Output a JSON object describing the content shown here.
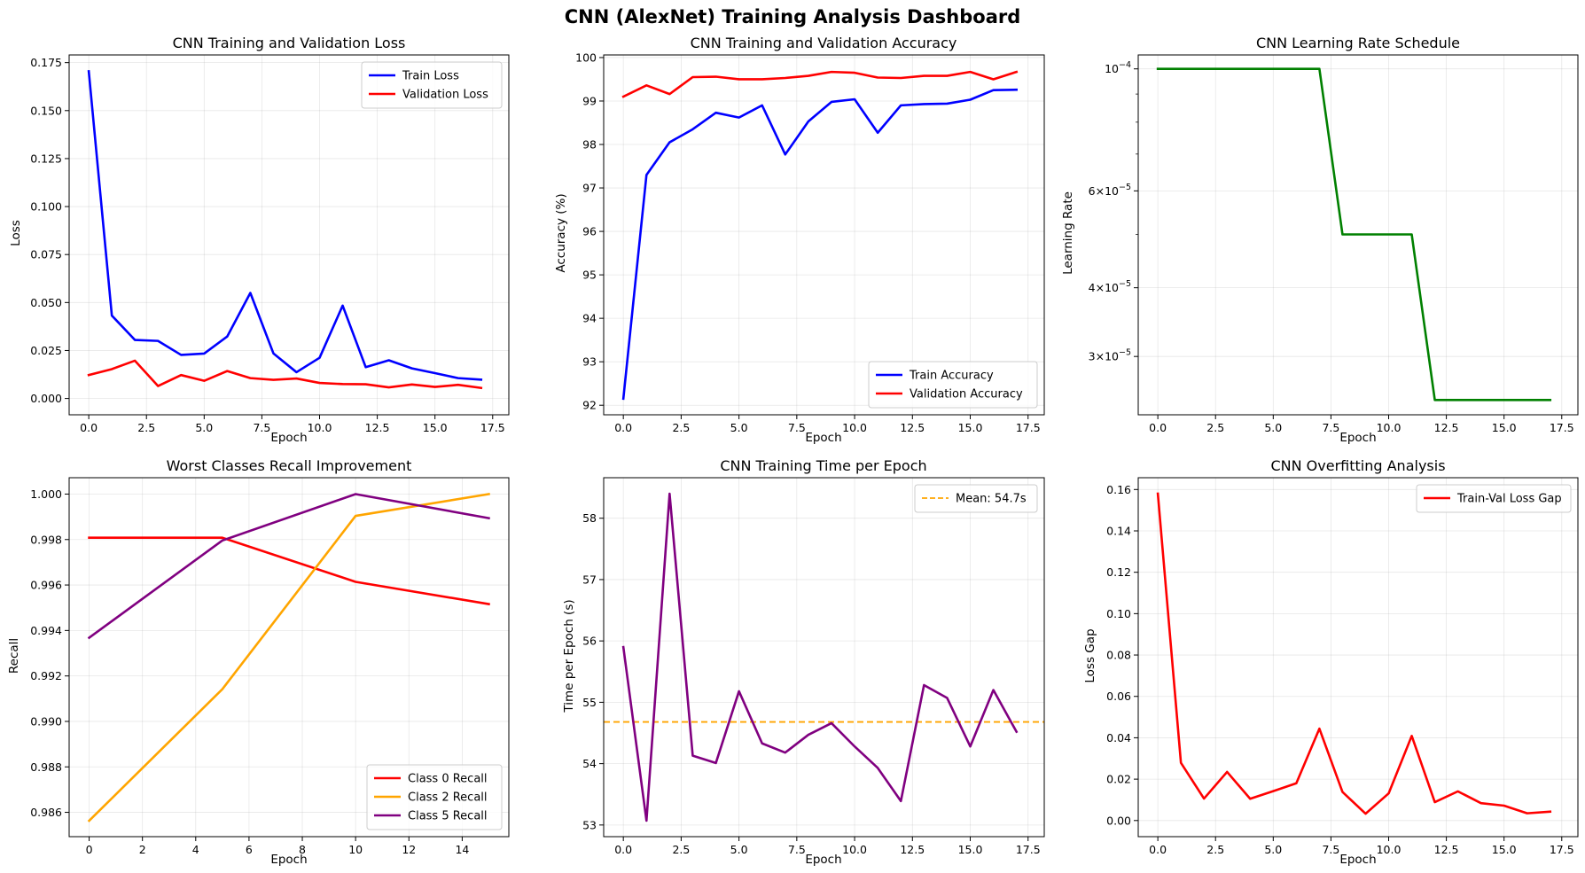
{
  "title": "CNN (AlexNet) Training Analysis Dashboard",
  "chart_data": [
    {
      "id": "loss",
      "type": "line",
      "title": "CNN Training and Validation Loss",
      "xlabel": "Epoch",
      "ylabel": "Loss",
      "xlim": [
        -0.85,
        18.2
      ],
      "ylim": [
        -0.0085,
        0.179
      ],
      "xticks": [
        0,
        2.5,
        5,
        7.5,
        10,
        12.5,
        15,
        17.5
      ],
      "xtick_labels": [
        "0.0",
        "2.5",
        "5.0",
        "7.5",
        "10.0",
        "12.5",
        "15.0",
        "17.5"
      ],
      "yticks": [
        0,
        0.025,
        0.05,
        0.075,
        0.1,
        0.125,
        0.15,
        0.175
      ],
      "ytick_labels": [
        "0.000",
        "0.025",
        "0.050",
        "0.075",
        "0.100",
        "0.125",
        "0.150",
        "0.175"
      ],
      "grid": true,
      "legend": "upper right",
      "x": [
        0,
        1,
        2,
        3,
        4,
        5,
        6,
        7,
        8,
        9,
        10,
        11,
        12,
        13,
        14,
        15,
        16,
        17
      ],
      "series": [
        {
          "name": "Train Loss",
          "color": "#0000ff",
          "values": [
            0.1705,
            0.0432,
            0.0305,
            0.03,
            0.0227,
            0.0234,
            0.0323,
            0.055,
            0.0235,
            0.0137,
            0.0212,
            0.0484,
            0.0163,
            0.0199,
            0.0157,
            0.0132,
            0.0106,
            0.0098
          ]
        },
        {
          "name": "Validation Loss",
          "color": "#ff0000",
          "values": [
            0.0122,
            0.0153,
            0.0197,
            0.0065,
            0.0122,
            0.0092,
            0.0143,
            0.0106,
            0.0097,
            0.0104,
            0.0081,
            0.0075,
            0.0074,
            0.0058,
            0.0073,
            0.006,
            0.0071,
            0.0055
          ]
        }
      ]
    },
    {
      "id": "acc",
      "type": "line",
      "title": "CNN Training and Validation Accuracy",
      "xlabel": "Epoch",
      "ylabel": "Accuracy (%)",
      "xlim": [
        -0.85,
        18.2
      ],
      "ylim": [
        91.78,
        100.06
      ],
      "xticks": [
        0,
        2.5,
        5,
        7.5,
        10,
        12.5,
        15,
        17.5
      ],
      "xtick_labels": [
        "0.0",
        "2.5",
        "5.0",
        "7.5",
        "10.0",
        "12.5",
        "15.0",
        "17.5"
      ],
      "yticks": [
        92,
        93,
        94,
        95,
        96,
        97,
        98,
        99,
        100
      ],
      "ytick_labels": [
        "92",
        "93",
        "94",
        "95",
        "96",
        "97",
        "98",
        "99",
        "100"
      ],
      "grid": true,
      "legend": "lower right",
      "x": [
        0,
        1,
        2,
        3,
        4,
        5,
        6,
        7,
        8,
        9,
        10,
        11,
        12,
        13,
        14,
        15,
        16,
        17
      ],
      "series": [
        {
          "name": "Train Accuracy",
          "color": "#0000ff",
          "values": [
            92.15,
            97.3,
            98.05,
            98.35,
            98.73,
            98.62,
            98.9,
            97.77,
            98.53,
            98.98,
            99.04,
            98.27,
            98.9,
            98.93,
            98.94,
            99.03,
            99.25,
            99.26
          ]
        },
        {
          "name": "Validation Accuracy",
          "color": "#ff0000",
          "values": [
            99.1,
            99.36,
            99.16,
            99.55,
            99.56,
            99.5,
            99.5,
            99.53,
            99.58,
            99.67,
            99.65,
            99.54,
            99.53,
            99.58,
            99.58,
            99.67,
            99.5,
            99.67
          ]
        }
      ]
    },
    {
      "id": "lr",
      "type": "line",
      "title": "CNN Learning Rate Schedule",
      "xlabel": "Epoch",
      "ylabel": "Learning Rate",
      "yscale": "log",
      "xlim": [
        -0.85,
        18.2
      ],
      "ylim": [
        2.35e-05,
        0.000106
      ],
      "xticks": [
        0,
        2.5,
        5,
        7.5,
        10,
        12.5,
        15,
        17.5
      ],
      "xtick_labels": [
        "0.0",
        "2.5",
        "5.0",
        "7.5",
        "10.0",
        "12.5",
        "15.0",
        "17.5"
      ],
      "yticks": [
        0.0001,
        6e-05,
        4e-05,
        3e-05
      ],
      "ytick_labels": [
        {
          "base": "10",
          "exp": "−4"
        },
        {
          "base": "6×10",
          "exp": "−5"
        },
        {
          "base": "4×10",
          "exp": "−5"
        },
        {
          "base": "3×10",
          "exp": "−5"
        }
      ],
      "minor_yticks": [
        9e-05,
        8e-05,
        7e-05,
        5e-05
      ],
      "grid": true,
      "legend": "none",
      "x": [
        0,
        1,
        2,
        3,
        4,
        5,
        6,
        7,
        8,
        9,
        10,
        11,
        12,
        13,
        14,
        15,
        16,
        17
      ],
      "series": [
        {
          "name": "",
          "color": "#008000",
          "values": [
            0.0001,
            0.0001,
            0.0001,
            0.0001,
            0.0001,
            0.0001,
            0.0001,
            0.0001,
            5e-05,
            5e-05,
            5e-05,
            5e-05,
            2.5e-05,
            2.5e-05,
            2.5e-05,
            2.5e-05,
            2.5e-05,
            2.5e-05
          ]
        }
      ]
    },
    {
      "id": "recall",
      "type": "line",
      "title": "Worst Classes Recall Improvement",
      "xlabel": "Epoch",
      "ylabel": "Recall",
      "xlim": [
        -0.75,
        15.75
      ],
      "ylim": [
        0.98493,
        1.00072
      ],
      "xticks": [
        0,
        2,
        4,
        6,
        8,
        10,
        12,
        14
      ],
      "xtick_labels": [
        "0",
        "2",
        "4",
        "6",
        "8",
        "10",
        "12",
        "14"
      ],
      "yticks": [
        0.986,
        0.988,
        0.99,
        0.992,
        0.994,
        0.996,
        0.998,
        1.0
      ],
      "ytick_labels": [
        "0.986",
        "0.988",
        "0.990",
        "0.992",
        "0.994",
        "0.996",
        "0.998",
        "1.000"
      ],
      "grid": true,
      "legend": "lower right",
      "x": [
        0,
        5,
        10,
        15
      ],
      "series": [
        {
          "name": "Class 0 Recall",
          "color": "#ff0000",
          "values": [
            0.99808,
            0.99808,
            0.99614,
            0.99516
          ]
        },
        {
          "name": "Class 2 Recall",
          "color": "#ffa500",
          "values": [
            0.98563,
            0.99142,
            0.99904,
            1.0
          ]
        },
        {
          "name": "Class 5 Recall",
          "color": "#800080",
          "values": [
            0.99368,
            0.99796,
            1.0,
            0.99894
          ]
        }
      ]
    },
    {
      "id": "time",
      "type": "line",
      "title": "CNN Training Time per Epoch",
      "xlabel": "Epoch",
      "ylabel": "Time per Epoch (s)",
      "xlim": [
        -0.85,
        18.2
      ],
      "ylim": [
        52.81,
        58.66
      ],
      "xticks": [
        0,
        2.5,
        5,
        7.5,
        10,
        12.5,
        15,
        17.5
      ],
      "xtick_labels": [
        "0.0",
        "2.5",
        "5.0",
        "7.5",
        "10.0",
        "12.5",
        "15.0",
        "17.5"
      ],
      "yticks": [
        53,
        54,
        55,
        56,
        57,
        58
      ],
      "ytick_labels": [
        "53",
        "54",
        "55",
        "56",
        "57",
        "58"
      ],
      "grid": true,
      "legend": "upper right",
      "hline": {
        "name": "Mean: 54.7s",
        "value": 54.68,
        "color": "#ffa500",
        "style": "dashed"
      },
      "x": [
        0,
        1,
        2,
        3,
        4,
        5,
        6,
        7,
        8,
        9,
        10,
        11,
        12,
        13,
        14,
        15,
        16,
        17
      ],
      "series": [
        {
          "name": "",
          "color": "#800080",
          "values": [
            55.9,
            53.07,
            58.4,
            54.13,
            54.01,
            55.18,
            54.33,
            54.18,
            54.47,
            54.66,
            54.28,
            53.93,
            53.39,
            55.28,
            55.07,
            54.28,
            55.2,
            54.52
          ]
        }
      ]
    },
    {
      "id": "gap",
      "type": "line",
      "title": "CNN Overfitting Analysis",
      "xlabel": "Epoch",
      "ylabel": "Loss Gap",
      "xlim": [
        -0.85,
        18.2
      ],
      "ylim": [
        -0.0078,
        0.1657
      ],
      "xticks": [
        0,
        2.5,
        5,
        7.5,
        10,
        12.5,
        15,
        17.5
      ],
      "xtick_labels": [
        "0.0",
        "2.5",
        "5.0",
        "7.5",
        "10.0",
        "12.5",
        "15.0",
        "17.5"
      ],
      "yticks": [
        0,
        0.02,
        0.04,
        0.06,
        0.08,
        0.1,
        0.12,
        0.14,
        0.16
      ],
      "ytick_labels": [
        "0.00",
        "0.02",
        "0.04",
        "0.06",
        "0.08",
        "0.10",
        "0.12",
        "0.14",
        "0.16"
      ],
      "grid": true,
      "legend": "upper right",
      "x": [
        0,
        1,
        2,
        3,
        4,
        5,
        6,
        7,
        8,
        9,
        10,
        11,
        12,
        13,
        14,
        15,
        16,
        17
      ],
      "series": [
        {
          "name": "Train-Val Loss Gap",
          "color": "#ff0000",
          "values": [
            0.158,
            0.0279,
            0.0106,
            0.0235,
            0.0105,
            0.0142,
            0.018,
            0.0444,
            0.0138,
            0.0033,
            0.0131,
            0.0409,
            0.0089,
            0.0141,
            0.0084,
            0.0072,
            0.0035,
            0.0043
          ]
        }
      ]
    }
  ]
}
